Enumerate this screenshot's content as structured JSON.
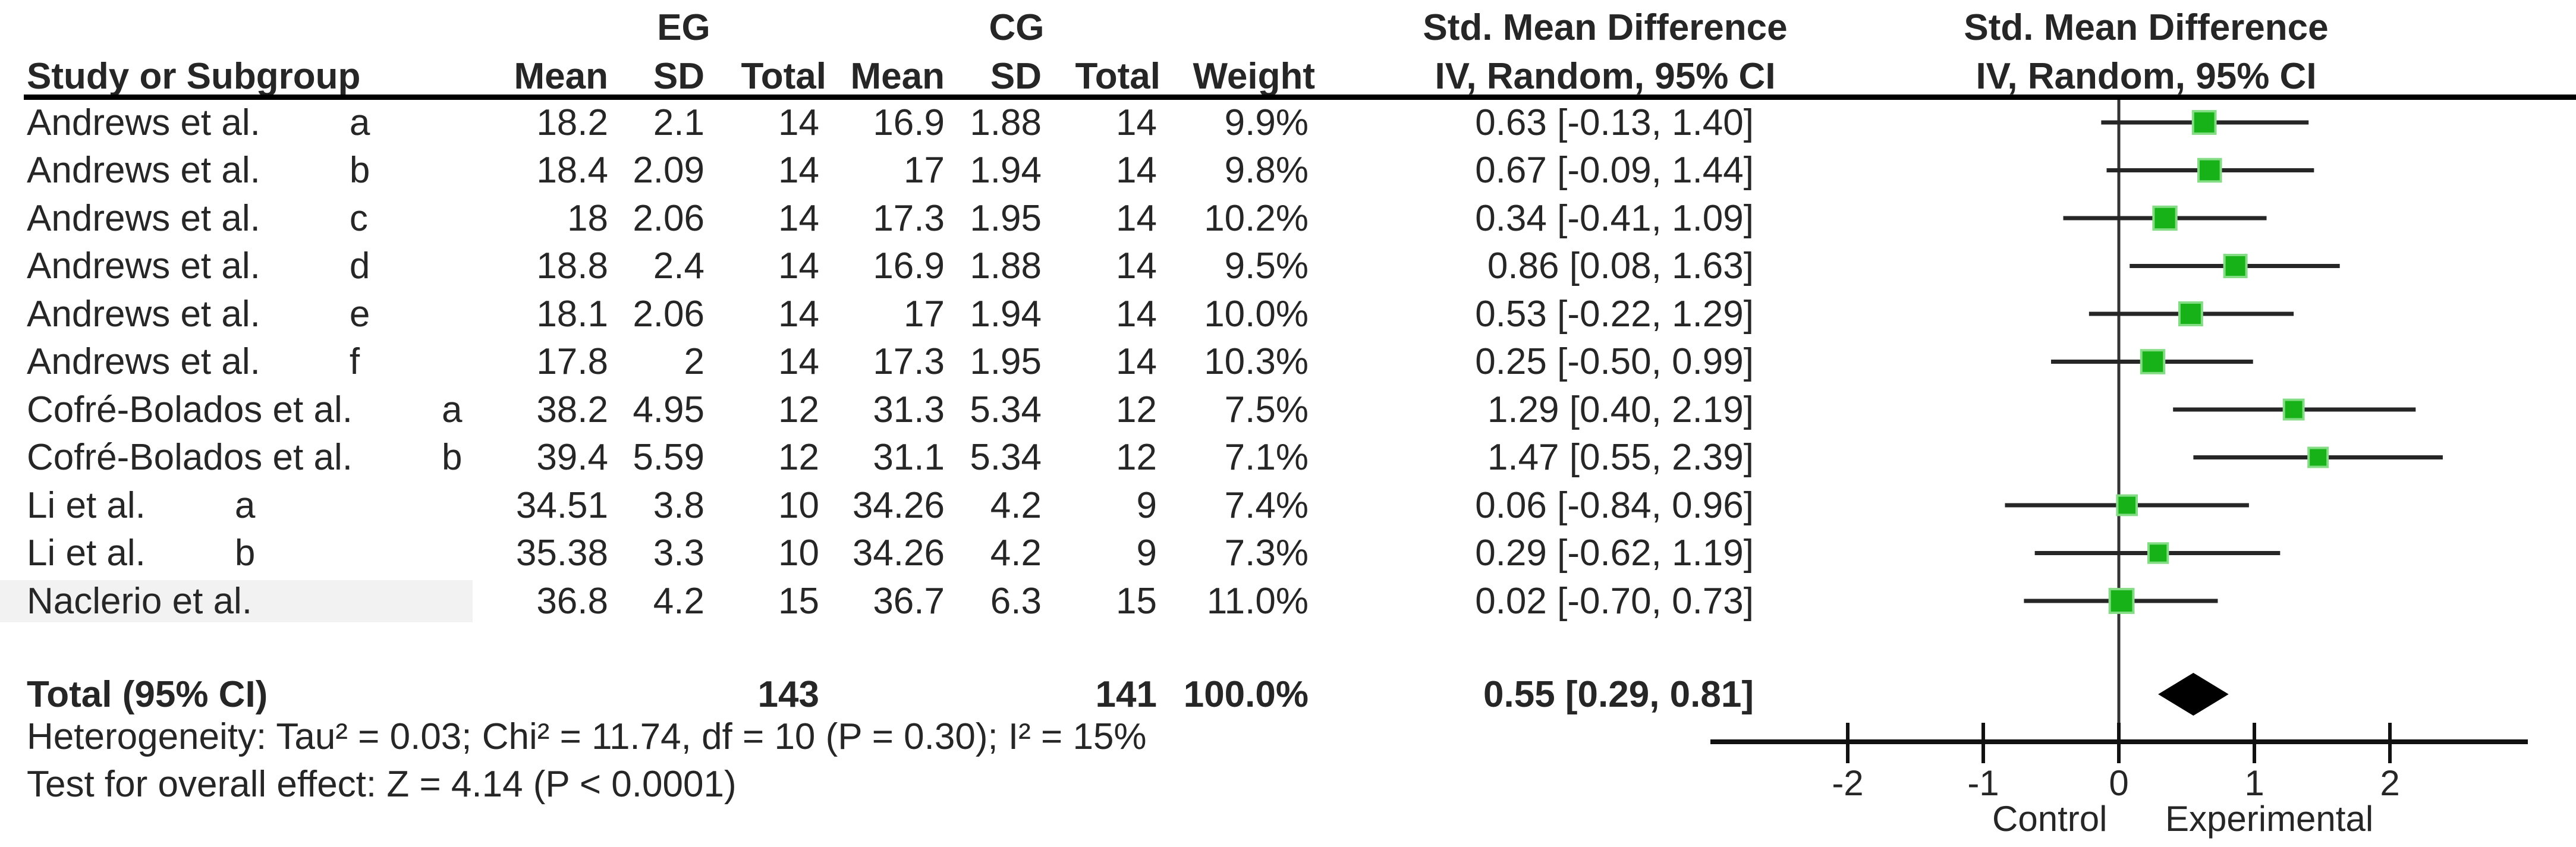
{
  "chart_data": {
    "type": "forest",
    "title_left_lines": [
      "Std. Mean Difference",
      "IV, Random, 95% CI"
    ],
    "title_plot_lines": [
      "Std. Mean Difference",
      "IV, Random, 95% CI"
    ],
    "group_eg_label": "EG",
    "group_cg_label": "CG",
    "columns": {
      "study": "Study or Subgroup",
      "mean": "Mean",
      "sd": "SD",
      "total": "Total",
      "weight": "Weight",
      "effect_ci": "IV, Random, 95% CI"
    },
    "studies": [
      {
        "name": "Andrews et al.",
        "sub": "a",
        "eg_mean": "18.2",
        "eg_sd": "2.1",
        "eg_total": "14",
        "cg_mean": "16.9",
        "cg_sd": "1.88",
        "cg_total": "14",
        "weight": "9.9%",
        "ci": "0.63 [-0.13, 1.40]",
        "est": 0.63,
        "lo": -0.13,
        "hi": 1.4,
        "w": 9.9
      },
      {
        "name": "Andrews et al.",
        "sub": "b",
        "eg_mean": "18.4",
        "eg_sd": "2.09",
        "eg_total": "14",
        "cg_mean": "17",
        "cg_sd": "1.94",
        "cg_total": "14",
        "weight": "9.8%",
        "ci": "0.67 [-0.09, 1.44]",
        "est": 0.67,
        "lo": -0.09,
        "hi": 1.44,
        "w": 9.8
      },
      {
        "name": "Andrews et al.",
        "sub": "c",
        "eg_mean": "18",
        "eg_sd": "2.06",
        "eg_total": "14",
        "cg_mean": "17.3",
        "cg_sd": "1.95",
        "cg_total": "14",
        "weight": "10.2%",
        "ci": "0.34 [-0.41, 1.09]",
        "est": 0.34,
        "lo": -0.41,
        "hi": 1.09,
        "w": 10.2
      },
      {
        "name": "Andrews et al.",
        "sub": "d",
        "eg_mean": "18.8",
        "eg_sd": "2.4",
        "eg_total": "14",
        "cg_mean": "16.9",
        "cg_sd": "1.88",
        "cg_total": "14",
        "weight": "9.5%",
        "ci": "0.86 [0.08, 1.63]",
        "est": 0.86,
        "lo": 0.08,
        "hi": 1.63,
        "w": 9.5
      },
      {
        "name": "Andrews et al.",
        "sub": "e",
        "eg_mean": "18.1",
        "eg_sd": "2.06",
        "eg_total": "14",
        "cg_mean": "17",
        "cg_sd": "1.94",
        "cg_total": "14",
        "weight": "10.0%",
        "ci": "0.53 [-0.22, 1.29]",
        "est": 0.53,
        "lo": -0.22,
        "hi": 1.29,
        "w": 10.0
      },
      {
        "name": "Andrews et al.",
        "sub": "f",
        "eg_mean": "17.8",
        "eg_sd": "2",
        "eg_total": "14",
        "cg_mean": "17.3",
        "cg_sd": "1.95",
        "cg_total": "14",
        "weight": "10.3%",
        "ci": "0.25 [-0.50, 0.99]",
        "est": 0.25,
        "lo": -0.5,
        "hi": 0.99,
        "w": 10.3
      },
      {
        "name": "Cofré-Bolados et al.",
        "sub": "a",
        "eg_mean": "38.2",
        "eg_sd": "4.95",
        "eg_total": "12",
        "cg_mean": "31.3",
        "cg_sd": "5.34",
        "cg_total": "12",
        "weight": "7.5%",
        "ci": "1.29 [0.40, 2.19]",
        "est": 1.29,
        "lo": 0.4,
        "hi": 2.19,
        "w": 7.5
      },
      {
        "name": "Cofré-Bolados et al.",
        "sub": "b",
        "eg_mean": "39.4",
        "eg_sd": "5.59",
        "eg_total": "12",
        "cg_mean": "31.1",
        "cg_sd": "5.34",
        "cg_total": "12",
        "weight": "7.1%",
        "ci": "1.47 [0.55, 2.39]",
        "est": 1.47,
        "lo": 0.55,
        "hi": 2.39,
        "w": 7.1
      },
      {
        "name": "Li et al.",
        "sub": "a",
        "eg_mean": "34.51",
        "eg_sd": "3.8",
        "eg_total": "10",
        "cg_mean": "34.26",
        "cg_sd": "4.2",
        "cg_total": "9",
        "weight": "7.4%",
        "ci": "0.06 [-0.84, 0.96]",
        "est": 0.06,
        "lo": -0.84,
        "hi": 0.96,
        "w": 7.4
      },
      {
        "name": "Li et al.",
        "sub": "b",
        "eg_mean": "35.38",
        "eg_sd": "3.3",
        "eg_total": "10",
        "cg_mean": "34.26",
        "cg_sd": "4.2",
        "cg_total": "9",
        "weight": "7.3%",
        "ci": "0.29 [-0.62, 1.19]",
        "est": 0.29,
        "lo": -0.62,
        "hi": 1.19,
        "w": 7.3
      },
      {
        "name": "Naclerio et al.",
        "sub": "",
        "eg_mean": "36.8",
        "eg_sd": "4.2",
        "eg_total": "15",
        "cg_mean": "36.7",
        "cg_sd": "6.3",
        "cg_total": "15",
        "weight": "11.0%",
        "ci": "0.02 [-0.70, 0.73]",
        "est": 0.02,
        "lo": -0.7,
        "hi": 0.73,
        "w": 11.0
      }
    ],
    "total": {
      "label": "Total (95% CI)",
      "eg_total": "143",
      "cg_total": "141",
      "weight": "100.0%",
      "ci": "0.55 [0.29, 0.81]",
      "est": 0.55,
      "lo": 0.29,
      "hi": 0.81
    },
    "heterogeneity": "Heterogeneity: Tau² = 0.03; Chi² = 11.74, df = 10 (P = 0.30); I² = 15%",
    "overall_test": "Test for overall effect: Z = 4.14 (P < 0.0001)",
    "axis": {
      "ticks": [
        -2,
        -1,
        0,
        1,
        2
      ],
      "min": -3,
      "max": 3,
      "left_label": "Control",
      "right_label": "Experimental"
    },
    "colors": {
      "square": "#17b217",
      "square_border": "#84dc84",
      "ci_line": "#262626",
      "diamond": "#000000",
      "axis": "#111111",
      "text": "#262626"
    }
  }
}
